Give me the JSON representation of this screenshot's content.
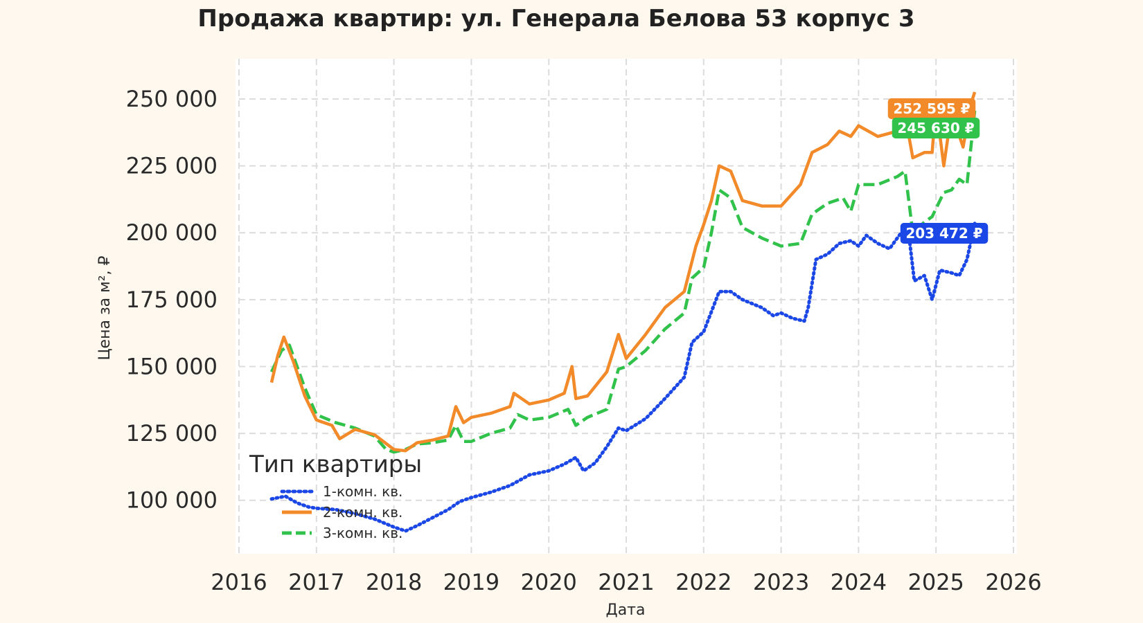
{
  "chart_data": {
    "type": "line",
    "title": "Продажа квартир: ул. Генерала Белова 53 корпус 3",
    "xlabel": "Дата",
    "ylabel": "Цена за м², ₽",
    "xlim": [
      2016.0,
      2026.0
    ],
    "ylim": [
      80000,
      265000
    ],
    "x_ticks": [
      2016,
      2017,
      2018,
      2019,
      2020,
      2021,
      2022,
      2023,
      2024,
      2025,
      2026
    ],
    "x_tick_labels": [
      "2016",
      "2017",
      "2018",
      "2019",
      "2020",
      "2021",
      "2022",
      "2023",
      "2024",
      "2025",
      "2026"
    ],
    "y_ticks": [
      100000,
      125000,
      150000,
      175000,
      200000,
      225000,
      250000
    ],
    "y_tick_labels": [
      "100 000",
      "125 000",
      "150 000",
      "175 000",
      "200 000",
      "225 000",
      "250 000"
    ],
    "grid": true,
    "legend": {
      "title": "Тип квартиры",
      "placement": "lower-left"
    },
    "series": [
      {
        "name": "1-комн. кв.",
        "color": "#1a47e5",
        "style": "dotted",
        "end_label": "203 472 ₽",
        "points": [
          [
            2016.42,
            100500
          ],
          [
            2016.6,
            101500
          ],
          [
            2016.75,
            99000
          ],
          [
            2016.9,
            97500
          ],
          [
            2017.0,
            97000
          ],
          [
            2017.25,
            96500
          ],
          [
            2017.5,
            95000
          ],
          [
            2017.75,
            93000
          ],
          [
            2018.0,
            90000
          ],
          [
            2018.15,
            88500
          ],
          [
            2018.3,
            90500
          ],
          [
            2018.5,
            93500
          ],
          [
            2018.7,
            96500
          ],
          [
            2018.85,
            99500
          ],
          [
            2019.0,
            101000
          ],
          [
            2019.25,
            103000
          ],
          [
            2019.5,
            105500
          ],
          [
            2019.75,
            109500
          ],
          [
            2020.0,
            111000
          ],
          [
            2020.2,
            113500
          ],
          [
            2020.35,
            116000
          ],
          [
            2020.45,
            111000
          ],
          [
            2020.6,
            114000
          ],
          [
            2020.75,
            120000
          ],
          [
            2020.9,
            127000
          ],
          [
            2021.0,
            126000
          ],
          [
            2021.25,
            130500
          ],
          [
            2021.5,
            138000
          ],
          [
            2021.75,
            146000
          ],
          [
            2021.85,
            159000
          ],
          [
            2022.0,
            163000
          ],
          [
            2022.2,
            178000
          ],
          [
            2022.35,
            178000
          ],
          [
            2022.5,
            175000
          ],
          [
            2022.75,
            172000
          ],
          [
            2022.9,
            169000
          ],
          [
            2023.0,
            170000
          ],
          [
            2023.15,
            168000
          ],
          [
            2023.3,
            167000
          ],
          [
            2023.35,
            172000
          ],
          [
            2023.45,
            190000
          ],
          [
            2023.6,
            192000
          ],
          [
            2023.75,
            196000
          ],
          [
            2023.9,
            197000
          ],
          [
            2024.0,
            195000
          ],
          [
            2024.1,
            199000
          ],
          [
            2024.25,
            196000
          ],
          [
            2024.4,
            194000
          ],
          [
            2024.55,
            200000
          ],
          [
            2024.65,
            199000
          ],
          [
            2024.72,
            182000
          ],
          [
            2024.85,
            184000
          ],
          [
            2024.95,
            175000
          ],
          [
            2025.05,
            186000
          ],
          [
            2025.2,
            185000
          ],
          [
            2025.3,
            184000
          ],
          [
            2025.4,
            190000
          ],
          [
            2025.5,
            203472
          ]
        ]
      },
      {
        "name": "2-комн. кв.",
        "color": "#f28a2a",
        "style": "solid",
        "end_label": "252 595 ₽",
        "points": [
          [
            2016.42,
            144000
          ],
          [
            2016.5,
            154000
          ],
          [
            2016.58,
            161000
          ],
          [
            2016.7,
            152000
          ],
          [
            2016.85,
            139000
          ],
          [
            2017.0,
            130000
          ],
          [
            2017.2,
            128000
          ],
          [
            2017.3,
            123000
          ],
          [
            2017.5,
            126500
          ],
          [
            2017.75,
            124500
          ],
          [
            2018.0,
            119000
          ],
          [
            2018.15,
            118500
          ],
          [
            2018.3,
            121500
          ],
          [
            2018.5,
            122500
          ],
          [
            2018.7,
            124000
          ],
          [
            2018.8,
            135000
          ],
          [
            2018.9,
            129000
          ],
          [
            2019.0,
            131000
          ],
          [
            2019.25,
            132500
          ],
          [
            2019.5,
            135000
          ],
          [
            2019.55,
            140000
          ],
          [
            2019.75,
            136000
          ],
          [
            2020.0,
            137500
          ],
          [
            2020.2,
            140000
          ],
          [
            2020.3,
            150000
          ],
          [
            2020.35,
            138000
          ],
          [
            2020.5,
            139000
          ],
          [
            2020.75,
            148000
          ],
          [
            2020.9,
            162000
          ],
          [
            2021.0,
            153000
          ],
          [
            2021.25,
            162000
          ],
          [
            2021.5,
            172000
          ],
          [
            2021.75,
            178000
          ],
          [
            2021.9,
            195000
          ],
          [
            2022.0,
            203000
          ],
          [
            2022.1,
            212000
          ],
          [
            2022.2,
            225000
          ],
          [
            2022.35,
            223000
          ],
          [
            2022.5,
            212000
          ],
          [
            2022.75,
            210000
          ],
          [
            2023.0,
            210000
          ],
          [
            2023.25,
            218000
          ],
          [
            2023.4,
            230000
          ],
          [
            2023.6,
            233000
          ],
          [
            2023.75,
            238000
          ],
          [
            2023.9,
            236000
          ],
          [
            2024.0,
            240000
          ],
          [
            2024.25,
            236000
          ],
          [
            2024.5,
            238000
          ],
          [
            2024.6,
            244000
          ],
          [
            2024.7,
            228000
          ],
          [
            2024.85,
            230000
          ],
          [
            2024.95,
            230000
          ],
          [
            2025.0,
            248000
          ],
          [
            2025.1,
            225000
          ],
          [
            2025.2,
            245000
          ],
          [
            2025.35,
            232000
          ],
          [
            2025.45,
            248000
          ],
          [
            2025.5,
            252595
          ]
        ]
      },
      {
        "name": "3-комн. кв.",
        "color": "#30c24a",
        "style": "dashed",
        "end_label": "245 630 ₽",
        "points": [
          [
            2016.42,
            148000
          ],
          [
            2016.55,
            156000
          ],
          [
            2016.65,
            158000
          ],
          [
            2016.75,
            150000
          ],
          [
            2016.85,
            142000
          ],
          [
            2017.0,
            132000
          ],
          [
            2017.25,
            129000
          ],
          [
            2017.5,
            127000
          ],
          [
            2017.75,
            124000
          ],
          [
            2017.9,
            119000
          ],
          [
            2018.0,
            118000
          ],
          [
            2018.15,
            119000
          ],
          [
            2018.3,
            121000
          ],
          [
            2018.5,
            121500
          ],
          [
            2018.7,
            122500
          ],
          [
            2018.8,
            128000
          ],
          [
            2018.9,
            122000
          ],
          [
            2019.0,
            122000
          ],
          [
            2019.25,
            125000
          ],
          [
            2019.5,
            127000
          ],
          [
            2019.6,
            132000
          ],
          [
            2019.75,
            130000
          ],
          [
            2020.0,
            131000
          ],
          [
            2020.25,
            134000
          ],
          [
            2020.35,
            128000
          ],
          [
            2020.5,
            131000
          ],
          [
            2020.75,
            134000
          ],
          [
            2020.9,
            149000
          ],
          [
            2021.0,
            150000
          ],
          [
            2021.25,
            156000
          ],
          [
            2021.5,
            164000
          ],
          [
            2021.75,
            170000
          ],
          [
            2021.85,
            183000
          ],
          [
            2022.0,
            187000
          ],
          [
            2022.1,
            200000
          ],
          [
            2022.2,
            216000
          ],
          [
            2022.35,
            213000
          ],
          [
            2022.5,
            202000
          ],
          [
            2022.75,
            198000
          ],
          [
            2023.0,
            195000
          ],
          [
            2023.25,
            196000
          ],
          [
            2023.4,
            207000
          ],
          [
            2023.6,
            211000
          ],
          [
            2023.8,
            213000
          ],
          [
            2023.9,
            208000
          ],
          [
            2024.0,
            218000
          ],
          [
            2024.25,
            218000
          ],
          [
            2024.5,
            221000
          ],
          [
            2024.6,
            223000
          ],
          [
            2024.7,
            200000
          ],
          [
            2024.85,
            204000
          ],
          [
            2024.95,
            206000
          ],
          [
            2025.1,
            215000
          ],
          [
            2025.2,
            216000
          ],
          [
            2025.3,
            220000
          ],
          [
            2025.4,
            218000
          ],
          [
            2025.5,
            245630
          ]
        ]
      }
    ]
  }
}
